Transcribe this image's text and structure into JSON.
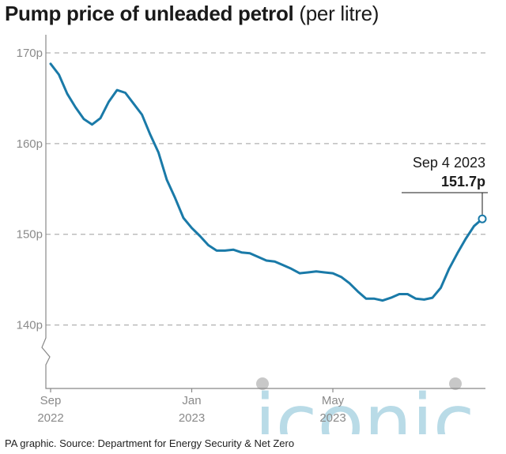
{
  "header": {
    "title_bold": "Pump price of unleaded petrol",
    "title_normal": "(per litre)"
  },
  "footer": {
    "source": "PA graphic. Source: Department for Energy Security & Net Zero"
  },
  "watermark": {
    "text": "iconic",
    "color": "#b9dbe7"
  },
  "colors": {
    "line": "#1a7aa8",
    "grid": "#b0b0b0",
    "axis": "#888888",
    "ticks": "#8a8a8a"
  },
  "chart_data": {
    "type": "line",
    "title": "Pump price of unleaded petrol (per litre)",
    "ylim": [
      133,
      172
    ],
    "yticks": [
      140,
      150,
      160,
      170
    ],
    "ytick_labels": [
      "140p",
      "150p",
      "160p",
      "170p"
    ],
    "xlim": [
      "2022-09-05",
      "2023-09-04"
    ],
    "xticks": [
      {
        "date": "2022-09-05",
        "line1": "Sep",
        "line2": "2022"
      },
      {
        "date": "2023-01-02",
        "line1": "Jan",
        "line2": "2023"
      },
      {
        "date": "2023-05-01",
        "line1": "May",
        "line2": "2023"
      }
    ],
    "grid": true,
    "series": [
      {
        "x": [
          "2022-09-05",
          "2022-09-12",
          "2022-09-19",
          "2022-09-26",
          "2022-10-03",
          "2022-10-10",
          "2022-10-17",
          "2022-10-24",
          "2022-10-31",
          "2022-11-07",
          "2022-11-14",
          "2022-11-21",
          "2022-11-28",
          "2022-12-05",
          "2022-12-12",
          "2022-12-19",
          "2022-12-26",
          "2023-01-02",
          "2023-01-09",
          "2023-01-16",
          "2023-01-23",
          "2023-01-30",
          "2023-02-06",
          "2023-02-13",
          "2023-02-20",
          "2023-02-27",
          "2023-03-06",
          "2023-03-13",
          "2023-03-20",
          "2023-03-27",
          "2023-04-03",
          "2023-04-10",
          "2023-04-17",
          "2023-04-24",
          "2023-05-01",
          "2023-05-08",
          "2023-05-15",
          "2023-05-22",
          "2023-05-29",
          "2023-06-05",
          "2023-06-12",
          "2023-06-19",
          "2023-06-26",
          "2023-07-03",
          "2023-07-10",
          "2023-07-17",
          "2023-07-24",
          "2023-07-31",
          "2023-08-07",
          "2023-08-14",
          "2023-08-21",
          "2023-08-28",
          "2023-09-04"
        ],
        "values": [
          168.8,
          167.6,
          165.5,
          164.0,
          162.7,
          162.1,
          162.8,
          164.6,
          165.9,
          165.6,
          164.4,
          163.2,
          161.0,
          159.0,
          156.0,
          154.0,
          151.8,
          150.7,
          149.8,
          148.8,
          148.2,
          148.2,
          148.3,
          148.0,
          147.9,
          147.5,
          147.1,
          147.0,
          146.6,
          146.2,
          145.7,
          145.8,
          145.9,
          145.8,
          145.7,
          145.3,
          144.6,
          143.7,
          142.9,
          142.9,
          142.7,
          143.0,
          143.4,
          143.4,
          142.9,
          142.8,
          143.0,
          144.1,
          146.2,
          147.9,
          149.5,
          150.9,
          151.7
        ]
      }
    ],
    "annotations": [
      {
        "date": "2023-09-04",
        "value": 151.7,
        "label_date": "Sep 4 2023",
        "label_value": "151.7p"
      }
    ]
  }
}
